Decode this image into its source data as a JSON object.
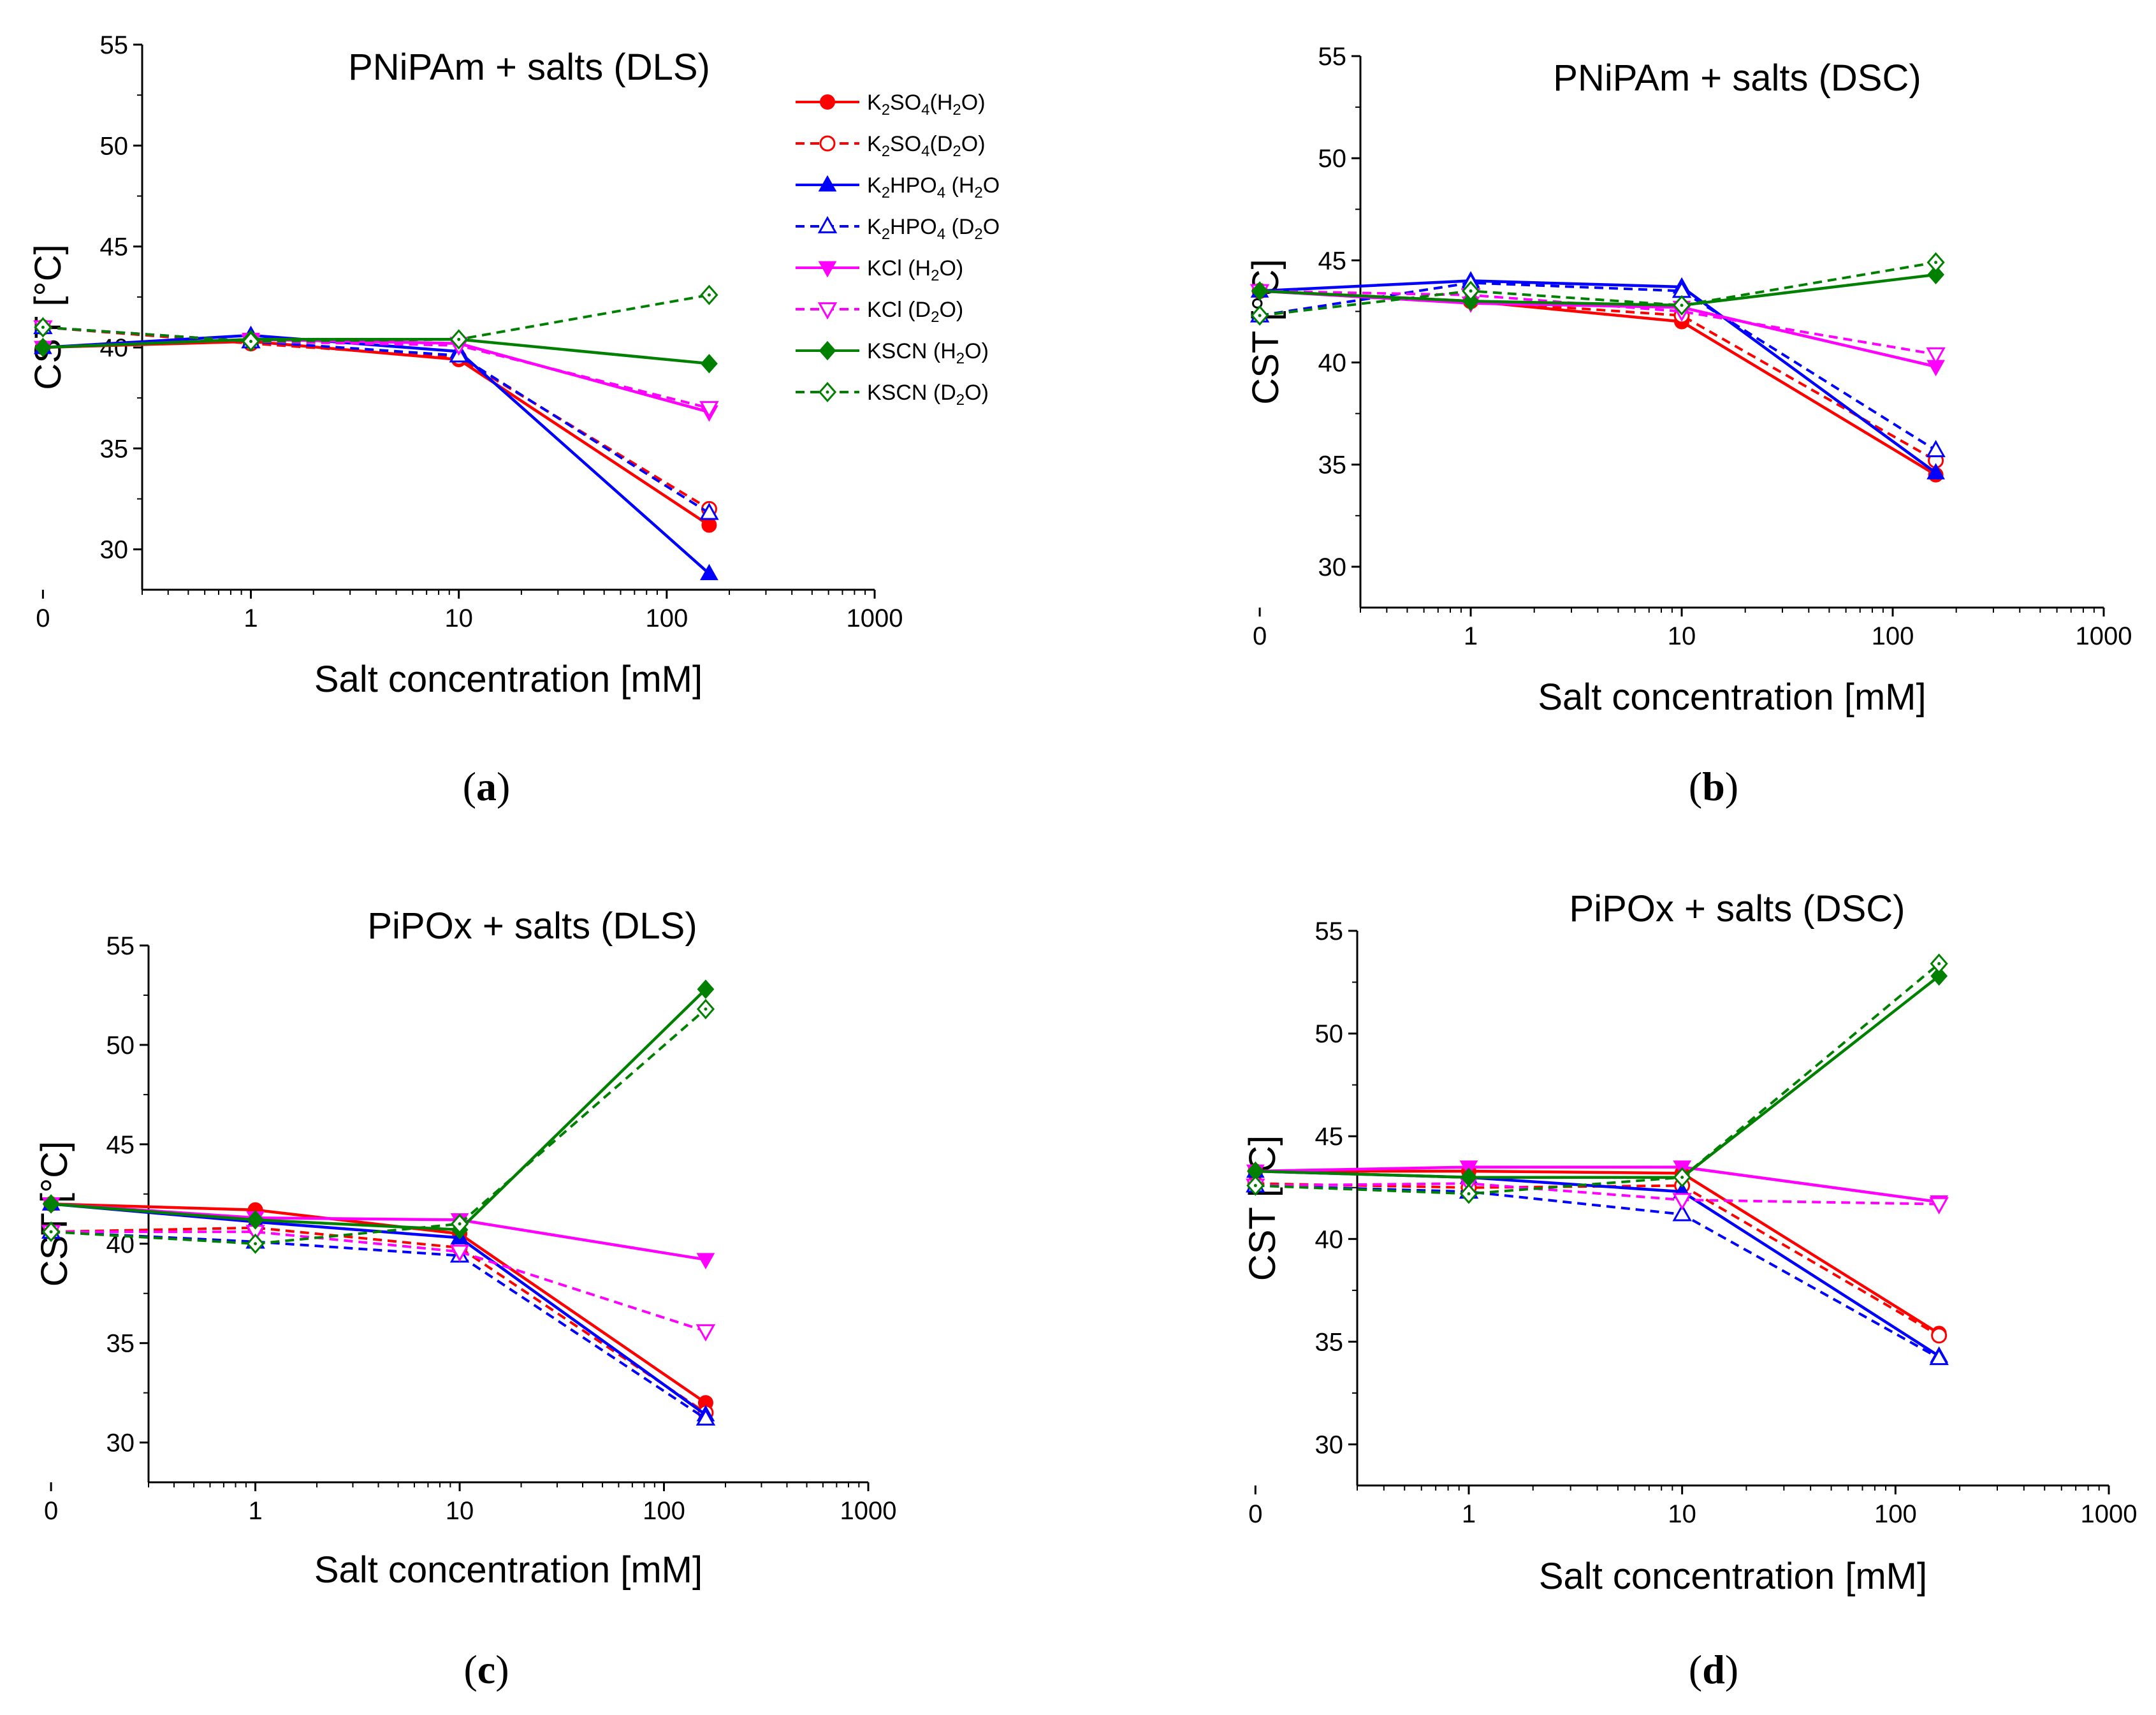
{
  "colors": {
    "K2SO4": "#ff0000",
    "K2HPO4": "#0000ff",
    "KCl": "#ff00ff",
    "KSCN": "#008000",
    "axis": "#000000"
  },
  "legend": [
    {
      "base": "K",
      "sub1": "2",
      "mid": "SO",
      "sub2": "4",
      "tail": "(H",
      "sub3": "2",
      "end": "O)",
      "salt": "K2SO4",
      "solvent": "H2O"
    },
    {
      "base": "K",
      "sub1": "2",
      "mid": "SO",
      "sub2": "4",
      "tail": "(D",
      "sub3": "2",
      "end": "O)",
      "salt": "K2SO4",
      "solvent": "D2O"
    },
    {
      "base": "K",
      "sub1": "2",
      "mid": "HPO",
      "sub2": "4",
      "tail": " (H",
      "sub3": "2",
      "end": "O",
      "salt": "K2HPO4",
      "solvent": "H2O"
    },
    {
      "base": "K",
      "sub1": "2",
      "mid": "HPO",
      "sub2": "4",
      "tail": " (D",
      "sub3": "2",
      "end": "O",
      "salt": "K2HPO4",
      "solvent": "D2O"
    },
    {
      "base": "KCl (H",
      "sub1": "",
      "mid": "",
      "sub2": "",
      "tail": "",
      "sub3": "2",
      "end": "O)",
      "salt": "KCl",
      "solvent": "H2O"
    },
    {
      "base": "KCl (D",
      "sub1": "",
      "mid": "",
      "sub2": "",
      "tail": "",
      "sub3": "2",
      "end": "O)",
      "salt": "KCl",
      "solvent": "D2O"
    },
    {
      "base": "KSCN (H",
      "sub1": "",
      "mid": "",
      "sub2": "",
      "tail": "",
      "sub3": "2",
      "end": "O)",
      "salt": "KSCN",
      "solvent": "H2O"
    },
    {
      "base": "KSCN (D",
      "sub1": "",
      "mid": "",
      "sub2": "",
      "tail": "",
      "sub3": "2",
      "end": "O)",
      "salt": "KSCN",
      "solvent": "D2O"
    }
  ],
  "chart_data": [
    {
      "type": "line",
      "panel": "a",
      "caption": "(a)",
      "title": "PNiPAm + salts (DLS)",
      "xlabel": "Salt concentration [mM]",
      "ylabel": "CST [°C]",
      "x_scale": "log",
      "xlim": [
        0.3,
        1000
      ],
      "ylim": [
        28,
        55
      ],
      "x_tick_labels": [
        "0",
        "1",
        "10",
        "100",
        "1000"
      ],
      "y_ticks": [
        30,
        35,
        40,
        45,
        50,
        55
      ],
      "x": [
        0,
        1,
        10,
        160
      ],
      "series": [
        {
          "name": "K2SO4 (H2O)",
          "salt": "K2SO4",
          "solvent": "H2O",
          "values": [
            40.0,
            40.3,
            39.4,
            31.2
          ]
        },
        {
          "name": "K2SO4 (D2O)",
          "salt": "K2SO4",
          "solvent": "D2O",
          "values": [
            41.0,
            40.2,
            39.5,
            32.0
          ]
        },
        {
          "name": "K2HPO4 (H2O)",
          "salt": "K2HPO4",
          "solvent": "H2O",
          "values": [
            40.0,
            40.6,
            39.8,
            28.8
          ]
        },
        {
          "name": "K2HPO4 (D2O)",
          "salt": "K2HPO4",
          "solvent": "D2O",
          "values": [
            41.0,
            40.3,
            39.6,
            31.8
          ]
        },
        {
          "name": "KCl (H2O)",
          "salt": "KCl",
          "solvent": "H2O",
          "values": [
            40.0,
            40.4,
            40.2,
            36.8
          ]
        },
        {
          "name": "KCl (D2O)",
          "salt": "KCl",
          "solvent": "D2O",
          "values": [
            41.0,
            40.3,
            40.1,
            37.0
          ]
        },
        {
          "name": "KSCN (H2O)",
          "salt": "KSCN",
          "solvent": "H2O",
          "values": [
            40.0,
            40.4,
            40.4,
            39.2
          ]
        },
        {
          "name": "KSCN (D2O)",
          "salt": "KSCN",
          "solvent": "D2O",
          "values": [
            41.0,
            40.3,
            40.4,
            42.6
          ]
        }
      ]
    },
    {
      "type": "line",
      "panel": "b",
      "caption": "(b)",
      "title": "PNiPAm + salts (DSC)",
      "xlabel": "Salt concentration [mM]",
      "ylabel": "CST [°C]",
      "x_scale": "log",
      "xlim": [
        0.3,
        1000
      ],
      "ylim": [
        28,
        55
      ],
      "x_tick_labels": [
        "0",
        "1",
        "10",
        "100",
        "1000"
      ],
      "y_ticks": [
        30,
        35,
        40,
        45,
        50,
        55
      ],
      "x": [
        0,
        1,
        10,
        160
      ],
      "series": [
        {
          "name": "K2SO4 (H2O)",
          "salt": "K2SO4",
          "solvent": "H2O",
          "values": [
            43.5,
            43.0,
            42.0,
            34.5
          ]
        },
        {
          "name": "K2SO4 (D2O)",
          "salt": "K2SO4",
          "solvent": "D2O",
          "values": [
            43.5,
            43.0,
            42.3,
            35.2
          ]
        },
        {
          "name": "K2HPO4 (H2O)",
          "salt": "K2HPO4",
          "solvent": "H2O",
          "values": [
            43.5,
            44.0,
            43.7,
            34.6
          ]
        },
        {
          "name": "K2HPO4 (D2O)",
          "salt": "K2HPO4",
          "solvent": "D2O",
          "values": [
            42.3,
            43.9,
            43.5,
            35.7
          ]
        },
        {
          "name": "KCl (H2O)",
          "salt": "KCl",
          "solvent": "H2O",
          "values": [
            43.5,
            42.9,
            42.7,
            39.8
          ]
        },
        {
          "name": "KCl (D2O)",
          "salt": "KCl",
          "solvent": "D2O",
          "values": [
            43.5,
            43.3,
            42.5,
            40.4
          ]
        },
        {
          "name": "KSCN (H2O)",
          "salt": "KSCN",
          "solvent": "H2O",
          "values": [
            43.5,
            43.0,
            42.8,
            44.3
          ]
        },
        {
          "name": "KSCN (D2O)",
          "salt": "KSCN",
          "solvent": "D2O",
          "values": [
            42.3,
            43.5,
            42.8,
            44.9
          ]
        }
      ]
    },
    {
      "type": "line",
      "panel": "c",
      "caption": "(c)",
      "title": "PiPOx + salts (DLS)",
      "xlabel": "Salt concentration [mM]",
      "ylabel": "CST [°C]",
      "x_scale": "log",
      "xlim": [
        0.3,
        1000
      ],
      "ylim": [
        28,
        55
      ],
      "x_tick_labels": [
        "0",
        "1",
        "10",
        "100",
        "1000"
      ],
      "y_ticks": [
        30,
        35,
        40,
        45,
        50,
        55
      ],
      "x": [
        0,
        1,
        10,
        160
      ],
      "series": [
        {
          "name": "K2SO4 (H2O)",
          "salt": "K2SO4",
          "solvent": "H2O",
          "values": [
            42.0,
            41.7,
            40.5,
            32.0
          ]
        },
        {
          "name": "K2SO4 (D2O)",
          "salt": "K2SO4",
          "solvent": "D2O",
          "values": [
            40.6,
            40.8,
            39.8,
            31.5
          ]
        },
        {
          "name": "K2HPO4 (H2O)",
          "salt": "K2HPO4",
          "solvent": "H2O",
          "values": [
            42.0,
            41.1,
            40.3,
            31.4
          ]
        },
        {
          "name": "K2HPO4 (D2O)",
          "salt": "K2HPO4",
          "solvent": "D2O",
          "values": [
            40.6,
            40.1,
            39.4,
            31.2
          ]
        },
        {
          "name": "KCl (H2O)",
          "salt": "KCl",
          "solvent": "H2O",
          "values": [
            42.0,
            41.3,
            41.2,
            39.2
          ]
        },
        {
          "name": "KCl (D2O)",
          "salt": "KCl",
          "solvent": "D2O",
          "values": [
            40.6,
            40.6,
            39.6,
            35.6
          ]
        },
        {
          "name": "KSCN (H2O)",
          "salt": "KSCN",
          "solvent": "H2O",
          "values": [
            42.0,
            41.2,
            40.7,
            52.8
          ]
        },
        {
          "name": "KSCN (D2O)",
          "salt": "KSCN",
          "solvent": "D2O",
          "values": [
            40.6,
            40.0,
            41.0,
            51.8
          ]
        }
      ]
    },
    {
      "type": "line",
      "panel": "d",
      "caption": "(d)",
      "title": "PiPOx + salts (DSC)",
      "xlabel": "Salt concentration [mM]",
      "ylabel": "CST [°C]",
      "x_scale": "log",
      "xlim": [
        0.3,
        1000
      ],
      "ylim": [
        28,
        55
      ],
      "x_tick_labels": [
        "0",
        "1",
        "10",
        "100",
        "1000"
      ],
      "y_ticks": [
        30,
        35,
        40,
        45,
        50,
        55
      ],
      "x": [
        0,
        1,
        10,
        160
      ],
      "series": [
        {
          "name": "K2SO4 (H2O)",
          "salt": "K2SO4",
          "solvent": "H2O",
          "values": [
            43.3,
            43.3,
            43.2,
            35.4
          ]
        },
        {
          "name": "K2SO4 (D2O)",
          "salt": "K2SO4",
          "solvent": "D2O",
          "values": [
            42.7,
            42.5,
            42.6,
            35.3
          ]
        },
        {
          "name": "K2HPO4 (H2O)",
          "salt": "K2HPO4",
          "solvent": "H2O",
          "values": [
            43.3,
            43.0,
            42.3,
            34.3
          ]
        },
        {
          "name": "K2HPO4 (D2O)",
          "salt": "K2HPO4",
          "solvent": "D2O",
          "values": [
            42.6,
            42.3,
            41.2,
            34.2
          ]
        },
        {
          "name": "KCl (H2O)",
          "salt": "KCl",
          "solvent": "H2O",
          "values": [
            43.3,
            43.5,
            43.5,
            41.8
          ]
        },
        {
          "name": "KCl (D2O)",
          "salt": "KCl",
          "solvent": "D2O",
          "values": [
            42.6,
            42.7,
            41.9,
            41.7
          ]
        },
        {
          "name": "KSCN (H2O)",
          "salt": "KSCN",
          "solvent": "H2O",
          "values": [
            43.3,
            43.0,
            43.0,
            52.8
          ]
        },
        {
          "name": "KSCN (D2O)",
          "salt": "KSCN",
          "solvent": "D2O",
          "values": [
            42.6,
            42.2,
            43.0,
            53.4
          ]
        }
      ]
    }
  ]
}
